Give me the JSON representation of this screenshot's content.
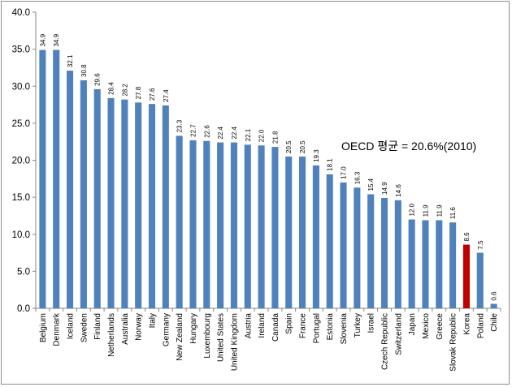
{
  "chart_data": {
    "type": "bar",
    "categories": [
      "Belgium",
      "Denmark",
      "Iceland",
      "Sweden",
      "Finland",
      "Netherlands",
      "Australia",
      "Norway",
      "Italy",
      "Germany",
      "New Zealand",
      "Hungary",
      "Luxembourg",
      "United States",
      "United Kingdom",
      "Austria",
      "Ireland",
      "Canada",
      "Spain",
      "France",
      "Portugal",
      "Estonia",
      "Slovenia",
      "Turkey",
      "Israel",
      "Czech Republic",
      "Switzerland",
      "Japan",
      "Mexico",
      "Greece",
      "Slovak Republic",
      "Korea",
      "Poland",
      "Chile"
    ],
    "values": [
      34.9,
      34.9,
      32.1,
      30.8,
      29.6,
      28.4,
      28.2,
      27.8,
      27.6,
      27.4,
      23.3,
      22.7,
      22.6,
      22.4,
      22.4,
      22.1,
      22.0,
      21.8,
      20.5,
      20.5,
      19.3,
      18.1,
      17.0,
      16.3,
      15.4,
      14.9,
      14.6,
      12.0,
      11.9,
      11.9,
      11.6,
      8.6,
      7.5,
      0.6
    ],
    "value_labels": [
      "34.9",
      "34.9",
      "32.1",
      "30.8",
      "29.6",
      "28.4",
      "28.2",
      "27.8",
      "27.6",
      "27.4",
      "23.3",
      "22.7",
      "22.6",
      "22.4",
      "22.4",
      "22.1",
      "22.0",
      "21.8",
      "20.5",
      "20.5",
      "19.3",
      "18.1",
      "17.0",
      "16.3",
      "15.4",
      "14.9",
      "14.6",
      "12.0",
      "11.9",
      "11.9",
      "11.6",
      "8.6",
      "7.5",
      "0.6"
    ],
    "highlight_category": "Korea",
    "colors": {
      "bar": "#4f81bd",
      "highlight": "#c00000",
      "axis": "#868686"
    },
    "ylim": [
      0,
      40
    ],
    "yticks": [
      0,
      5,
      10,
      15,
      20,
      25,
      30,
      35,
      40
    ],
    "ytick_labels": [
      "0.0",
      "5.0",
      "10.0",
      "15.0",
      "20.0",
      "25.0",
      "30.0",
      "35.0",
      "40.0"
    ],
    "grid": false,
    "annotation": "OECD 평균 = 20.6%(2010)",
    "title": "",
    "xlabel": "",
    "ylabel": ""
  }
}
